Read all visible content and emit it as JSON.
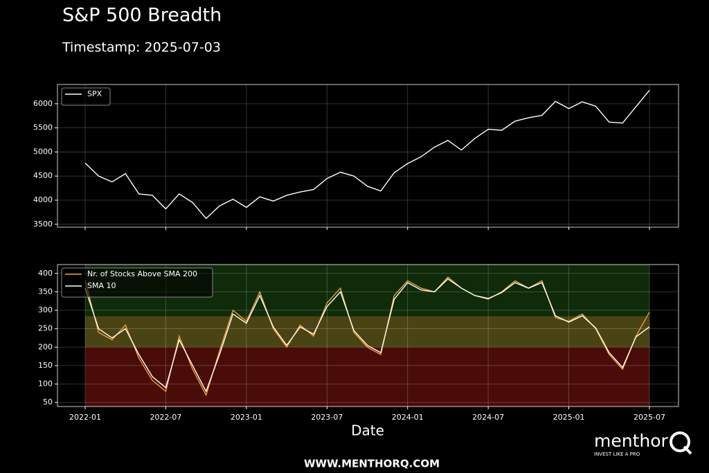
{
  "chart_data": [
    {
      "type": "line",
      "title": "S&P 500 Breadth",
      "subtitle": "Timestamp: 2025-07-03",
      "x": [
        "2022-01",
        "2022-02",
        "2022-03",
        "2022-04",
        "2022-05",
        "2022-06",
        "2022-07",
        "2022-08",
        "2022-09",
        "2022-10",
        "2022-11",
        "2022-12",
        "2023-01",
        "2023-02",
        "2023-03",
        "2023-04",
        "2023-05",
        "2023-06",
        "2023-07",
        "2023-08",
        "2023-09",
        "2023-10",
        "2023-11",
        "2023-12",
        "2024-01",
        "2024-02",
        "2024-03",
        "2024-04",
        "2024-05",
        "2024-06",
        "2024-07",
        "2024-08",
        "2024-09",
        "2024-10",
        "2024-11",
        "2024-12",
        "2025-01",
        "2025-02",
        "2025-03",
        "2025-04",
        "2025-05",
        "2025-06",
        "2025-07"
      ],
      "series": [
        {
          "name": "SPX",
          "color": "#ffffff",
          "values": [
            4770,
            4500,
            4380,
            4550,
            4130,
            4100,
            3820,
            4130,
            3950,
            3620,
            3880,
            4020,
            3850,
            4070,
            3980,
            4100,
            4170,
            4220,
            4450,
            4580,
            4500,
            4290,
            4190,
            4570,
            4760,
            4900,
            5100,
            5240,
            5040,
            5280,
            5470,
            5450,
            5640,
            5710,
            5760,
            6050,
            5900,
            6040,
            5950,
            5620,
            5600,
            5940,
            6280
          ]
        }
      ],
      "ylim": [
        3440,
        6400
      ],
      "yticks": [
        3500,
        4000,
        4500,
        5000,
        5500,
        6000
      ],
      "grid": true,
      "legend": "upper-left"
    },
    {
      "type": "line",
      "xlabel": "Date",
      "x": [
        "2022-01",
        "2022-02",
        "2022-03",
        "2022-04",
        "2022-05",
        "2022-06",
        "2022-07",
        "2022-08",
        "2022-09",
        "2022-10",
        "2022-11",
        "2022-12",
        "2023-01",
        "2023-02",
        "2023-03",
        "2023-04",
        "2023-05",
        "2023-06",
        "2023-07",
        "2023-08",
        "2023-09",
        "2023-10",
        "2023-11",
        "2023-12",
        "2024-01",
        "2024-02",
        "2024-03",
        "2024-04",
        "2024-05",
        "2024-06",
        "2024-07",
        "2024-08",
        "2024-09",
        "2024-10",
        "2024-11",
        "2024-12",
        "2025-01",
        "2025-02",
        "2025-03",
        "2025-04",
        "2025-05",
        "2025-06",
        "2025-07"
      ],
      "series": [
        {
          "name": "Nr. of Stocks Above SMA 200",
          "color": "#f0a030",
          "values": [
            380,
            240,
            220,
            260,
            170,
            110,
            80,
            230,
            140,
            70,
            190,
            300,
            270,
            350,
            250,
            200,
            260,
            230,
            320,
            360,
            240,
            200,
            180,
            340,
            380,
            360,
            350,
            390,
            360,
            340,
            330,
            350,
            380,
            360,
            380,
            280,
            270,
            290,
            250,
            180,
            140,
            230,
            295
          ]
        },
        {
          "name": "SMA 10",
          "color": "#ffffff",
          "values": [
            360,
            250,
            225,
            250,
            180,
            120,
            90,
            220,
            150,
            80,
            180,
            290,
            265,
            340,
            255,
            205,
            255,
            235,
            310,
            350,
            245,
            205,
            185,
            330,
            375,
            355,
            350,
            385,
            360,
            340,
            332,
            348,
            375,
            360,
            375,
            285,
            268,
            285,
            252,
            185,
            145,
            228,
            255
          ]
        }
      ],
      "ylim": [
        39,
        424
      ],
      "yticks": [
        50,
        100,
        150,
        200,
        250,
        300,
        350,
        400
      ],
      "xticks": [
        "2022-01",
        "2022-07",
        "2023-01",
        "2023-07",
        "2024-01",
        "2024-07",
        "2025-01",
        "2025-07"
      ],
      "bands": [
        {
          "from": 39,
          "to": 200,
          "color": "#4a0c09"
        },
        {
          "from": 200,
          "to": 284,
          "color": "#4a4414"
        },
        {
          "from": 284,
          "to": 424,
          "color": "#0f2b0a"
        }
      ],
      "grid": true,
      "legend": "upper-left"
    }
  ],
  "logo": {
    "text": "menthor",
    "mark": "Q",
    "tagline": "INVEST LIKE A PRO"
  },
  "footer": "WWW.MENTHORQ.COM"
}
